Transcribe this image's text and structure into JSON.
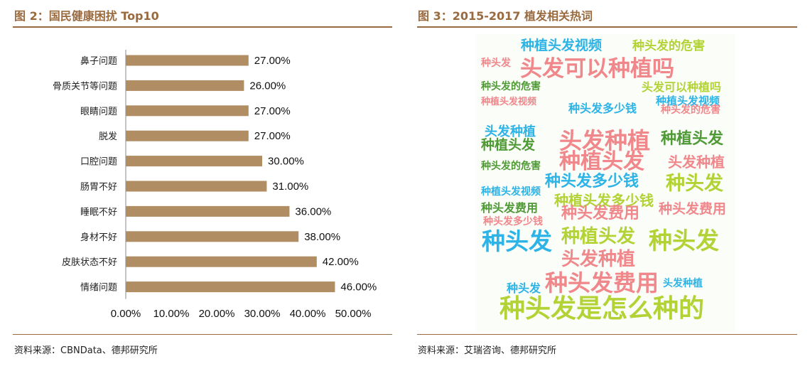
{
  "left": {
    "title": "图 2：国民健康困扰 Top10",
    "source": "资料来源：CBNData、德邦研究所"
  },
  "right": {
    "title": "图 3：2015-2017 植发相关热词",
    "source": "资料来源：艾瑞咨询、德邦研究所"
  },
  "chart_data": {
    "type": "bar",
    "orientation": "horizontal",
    "title": "国民健康困扰 Top10",
    "categories": [
      "鼻子问题",
      "骨质关节等问题",
      "眼睛问题",
      "脱发",
      "口腔问题",
      "肠胃不好",
      "睡眠不好",
      "身材不好",
      "皮肤状态不好",
      "情绪问题"
    ],
    "values": [
      27,
      26,
      27,
      27,
      30,
      31,
      36,
      38,
      42,
      46
    ],
    "value_labels": [
      "27.00%",
      "26.00%",
      "27.00%",
      "27.00%",
      "30.00%",
      "31.00%",
      "36.00%",
      "38.00%",
      "42.00%",
      "46.00%"
    ],
    "xlim": [
      0,
      50
    ],
    "ticks": [
      "0.00%",
      "10.00%",
      "20.00%",
      "30.00%",
      "40.00%",
      "50.00%"
    ],
    "bar_color": "#b08d63",
    "grid": false
  },
  "cloud": {
    "words": [
      "种植头发视频",
      "种头发的危害",
      "头发可以种植吗",
      "种头发",
      "种头发的危害",
      "头发可以种植吗",
      "种植头发视频",
      "种头发多少钱",
      "种植头发视频",
      "种头发的危害",
      "头发种植",
      "头发种植",
      "种植头发",
      "种植头发",
      "种植头发",
      "头发种植",
      "种头发的危害",
      "种头发多少钱",
      "种头发",
      "种植头发多少钱",
      "种植头发视频",
      "种头发费用",
      "种头发费用",
      "种头发费用",
      "种头发多少钱",
      "种头发",
      "种植头发",
      "种头发",
      "头发种植",
      "种头发费用",
      "种头发",
      "头发种植",
      "种头发是怎么种的"
    ],
    "colors": {
      "pink": "#f0878b",
      "blue": "#2db3e6",
      "green": "#6fb43c",
      "lime": "#b3d235",
      "dgreen": "#4f9a35"
    }
  }
}
